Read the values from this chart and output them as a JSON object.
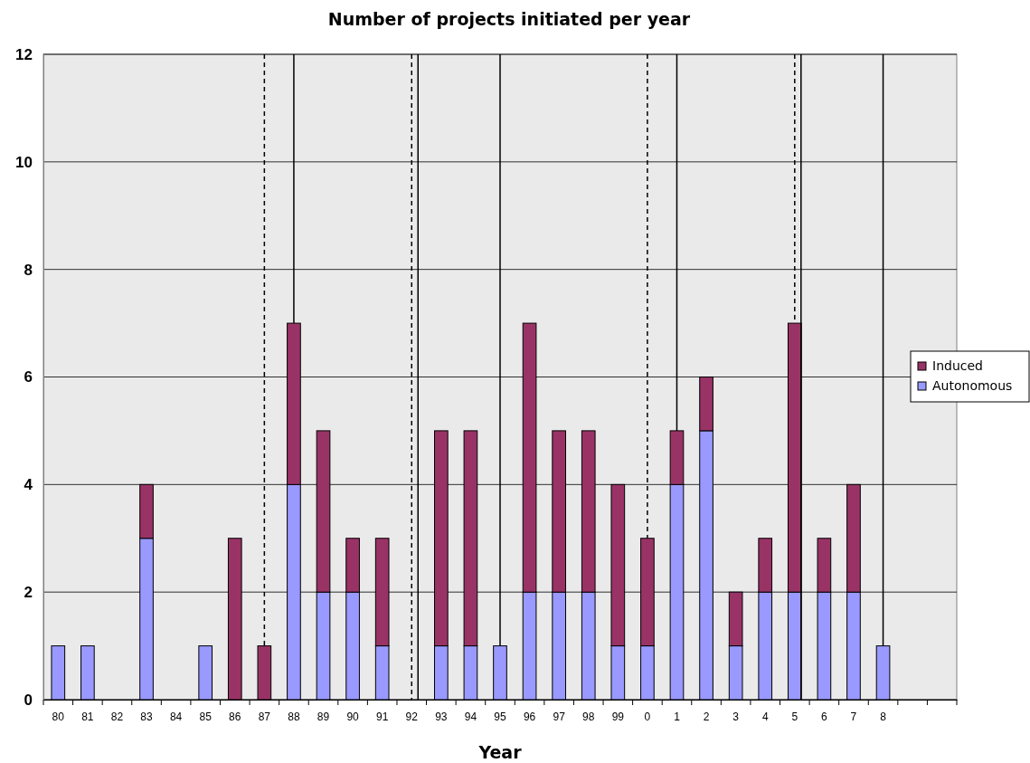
{
  "chart_data": {
    "type": "bar",
    "title": "Number of projects initiated per year",
    "xlabel": "Year",
    "stacked": true,
    "categories": [
      "80",
      "81",
      "82",
      "83",
      "84",
      "85",
      "86",
      "87",
      "88",
      "89",
      "90",
      "91",
      "92",
      "93",
      "94",
      "95",
      "96",
      "97",
      "98",
      "99",
      "0",
      "1",
      "2",
      "3",
      "4",
      "5",
      "6",
      "7",
      "8",
      null,
      null
    ],
    "series": [
      {
        "name": "Autonomous",
        "color": "#9999ff",
        "values": [
          1,
          1,
          0,
          3,
          0,
          1,
          0,
          0,
          4,
          2,
          2,
          1,
          0,
          1,
          1,
          1,
          2,
          2,
          2,
          1,
          1,
          4,
          5,
          1,
          2,
          2,
          2,
          2,
          1,
          null,
          null
        ]
      },
      {
        "name": "Induced",
        "color": "#993366",
        "values": [
          0,
          0,
          0,
          1,
          0,
          0,
          3,
          1,
          3,
          3,
          1,
          2,
          0,
          4,
          4,
          0,
          5,
          3,
          3,
          3,
          2,
          1,
          1,
          1,
          1,
          5,
          1,
          2,
          0,
          null,
          null
        ]
      }
    ],
    "ylim": [
      0,
      12
    ],
    "yticks": [
      0,
      2,
      4,
      6,
      8,
      10,
      12
    ],
    "grid": "y",
    "legend": "right",
    "ref_lines": [
      {
        "axis": "x",
        "value": "87",
        "line_style": "dashed",
        "color": "#000000"
      },
      {
        "axis": "x",
        "value": "88",
        "line_style": "solid",
        "color": "#000000"
      },
      {
        "axis": "x",
        "value": "92",
        "line_style": "solid",
        "color": "#000000"
      },
      {
        "axis": "x",
        "value": "92",
        "line_style": "dashed",
        "color": "#000000"
      },
      {
        "axis": "x",
        "value": "95",
        "line_style": "solid",
        "color": "#000000"
      },
      {
        "axis": "x",
        "value": "0",
        "line_style": "dashed",
        "color": "#000000"
      },
      {
        "axis": "x",
        "value": "1",
        "line_style": "solid",
        "color": "#000000"
      },
      {
        "axis": "x",
        "value": "5",
        "line_style": "dashed",
        "color": "#000000"
      },
      {
        "axis": "x",
        "value": "5",
        "line_style": "solid",
        "color": "#000000"
      },
      {
        "axis": "x",
        "value": "8",
        "line_style": "solid",
        "color": "#000000"
      }
    ]
  }
}
